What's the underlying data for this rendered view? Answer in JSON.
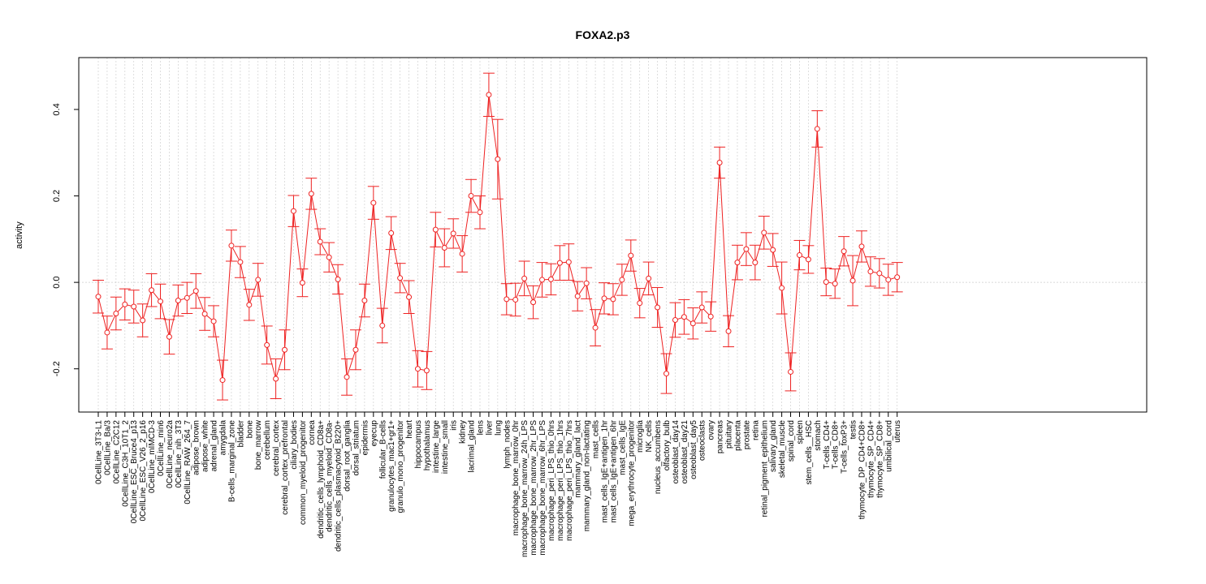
{
  "chart_data": {
    "type": "line",
    "title": "FOXA2.p3",
    "xlabel": "",
    "ylabel": "activity",
    "ylim": [
      -0.3,
      0.52
    ],
    "yticks": [
      -0.2,
      0.0,
      0.2,
      0.4
    ],
    "ytick_labels": [
      "-0.2",
      "0.0",
      "0.2",
      "0.4"
    ],
    "grid": true,
    "colors": {
      "series": "#ee2222",
      "grid": "#d0d0d0",
      "zero_line": "#cccccc",
      "axis": "#000000"
    },
    "categories": [
      "0CellLine_3T3-L1",
      "0CellLine_Ba/3",
      "0CellLine_C2C12",
      "0CellLine_C3H_10T1_2",
      "0CellLine_ESC_Bruce4_p13",
      "0CellLine_ESC_V26_2_p16",
      "0CellLine_mIMCD-3",
      "0CellLine_min6",
      "0CellLine_neuro2a",
      "0CellLine_nih_3T3",
      "0CellLine_RAW_264_7",
      "adipose_brown",
      "adipose_white",
      "adrenal_gland",
      "amygdala",
      "B-cells_marginal_zone",
      "bladder",
      "bone",
      "bone_marrow",
      "cerebellum",
      "cerebral_cortex",
      "cerebral_cortex_prefrontal",
      "ciliary_bodies",
      "common_myeloid_progenitor",
      "cornea",
      "dendritic_cells_lymphoid_CD8a+",
      "dendritic_cells_myeloid_CD8a-",
      "dendritic_cells_plasmacytoid_B220+",
      "dorsal_root_ganglia",
      "dorsal_striatum",
      "epidermis",
      "eyecup",
      "follicular_B-cells",
      "granulocytes_mac1+gr1+",
      "granulo_mono_progenitor",
      "heart",
      "hippocampus",
      "hypothalamus",
      "intestine_large",
      "intestine_small",
      "iris",
      "kidney",
      "lacrimal_gland",
      "lens",
      "liver",
      "lung",
      "lymph_nodes",
      "macrophage_bone_marrow_0hr",
      "macrophage_bone_marrow_24h_LPS",
      "macrophage_bone_marrow_2hr_LPS",
      "macrophage_bone_marrow_6hr_LPS",
      "macrophage_peri_LPS_thio_0hrs",
      "macrophage_peri_LPS_thio_1hrs",
      "macrophage_peri_LPS_thio_7hrs",
      "mammary_gland_lact",
      "mammary_gland_non-lactating",
      "mast_cells",
      "mast_cells_IgE+antigen_1hr",
      "mast_cells_IgE+antigen_6hr",
      "mast_cells_IgE",
      "mega_erythrocyte_progenitor",
      "microglia",
      "NK_cells",
      "nucleus_accumbens",
      "olfactory_bulb",
      "osteoblast_day14",
      "osteoblast_day21",
      "osteoblast_day5",
      "osteoclasts",
      "ovary",
      "pancreas",
      "pituitary",
      "placenta",
      "prostate",
      "retina",
      "retinal_pigment_epithelium",
      "salivary_gland",
      "skeletal_muscle",
      "spinal_cord",
      "spleen",
      "stem_cells__HSC",
      "stomach",
      "T-cells_CD4+",
      "T-cells_CD8+",
      "T-cells_foxP3+",
      "testis",
      "thymocyte_DP_CD4+CD8+",
      "thymocyte_SP_CD4+",
      "thymocyte_SP_CD8+",
      "umbilical_cord",
      "uterus"
    ],
    "series": [
      {
        "values": [
          -0.033,
          -0.116,
          -0.072,
          -0.051,
          -0.056,
          -0.088,
          -0.018,
          -0.044,
          -0.126,
          -0.042,
          -0.036,
          -0.02,
          -0.073,
          -0.09,
          -0.226,
          0.085,
          0.047,
          -0.052,
          0.006,
          -0.145,
          -0.223,
          -0.156,
          0.165,
          -0.001,
          0.205,
          0.094,
          0.058,
          0.007,
          -0.219,
          -0.156,
          -0.042,
          0.184,
          -0.1,
          0.114,
          0.01,
          -0.034,
          -0.2,
          -0.204,
          0.122,
          0.08,
          0.113,
          0.066,
          0.2,
          0.162,
          0.434,
          0.285,
          -0.039,
          -0.04,
          0.009,
          -0.046,
          0.006,
          0.007,
          0.045,
          0.047,
          -0.032,
          -0.002,
          -0.105,
          -0.037,
          -0.039,
          0.006,
          0.062,
          -0.048,
          0.009,
          -0.058,
          -0.211,
          -0.087,
          -0.08,
          -0.095,
          -0.058,
          -0.079,
          0.277,
          -0.113,
          0.046,
          0.077,
          0.046,
          0.115,
          0.075,
          -0.013,
          -0.207,
          0.063,
          0.053,
          0.355,
          0.001,
          -0.003,
          0.072,
          0.004,
          0.083,
          0.025,
          0.021,
          0.006,
          0.012
        ],
        "error": [
          0.038,
          0.038,
          0.038,
          0.036,
          0.038,
          0.038,
          0.038,
          0.04,
          0.04,
          0.036,
          0.036,
          0.04,
          0.038,
          0.036,
          0.046,
          0.036,
          0.036,
          0.036,
          0.038,
          0.044,
          0.046,
          0.046,
          0.036,
          0.032,
          0.036,
          0.03,
          0.034,
          0.034,
          0.042,
          0.046,
          0.038,
          0.038,
          0.04,
          0.038,
          0.034,
          0.038,
          0.042,
          0.044,
          0.04,
          0.044,
          0.034,
          0.042,
          0.038,
          0.038,
          0.05,
          0.092,
          0.036,
          0.038,
          0.04,
          0.038,
          0.04,
          0.036,
          0.04,
          0.042,
          0.034,
          0.036,
          0.042,
          0.036,
          0.036,
          0.036,
          0.036,
          0.034,
          0.038,
          0.046,
          0.046,
          0.04,
          0.04,
          0.036,
          0.036,
          0.034,
          0.036,
          0.036,
          0.04,
          0.038,
          0.04,
          0.038,
          0.038,
          0.06,
          0.044,
          0.034,
          0.032,
          0.042,
          0.032,
          0.034,
          0.034,
          0.058,
          0.036,
          0.034,
          0.034,
          0.036,
          0.034
        ]
      }
    ]
  }
}
